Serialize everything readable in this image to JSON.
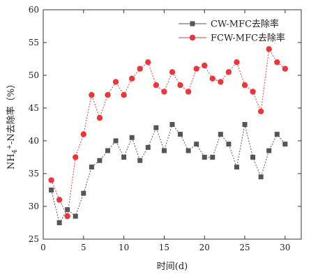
{
  "chart_data": {
    "type": "line",
    "xlabel": "时间(d)",
    "ylabel": "NH4+-N去除率（%）",
    "xlim": [
      0,
      32
    ],
    "ylim": [
      25,
      60
    ],
    "xticks": [
      0,
      5,
      10,
      15,
      20,
      25,
      30
    ],
    "yticks": [
      25,
      30,
      35,
      40,
      45,
      50,
      55,
      60
    ],
    "grid": false,
    "legend_position": "top-right",
    "series": [
      {
        "name": "CW-MFC去除率",
        "color": "#555555",
        "marker": "square",
        "x": [
          1,
          2,
          3,
          4,
          5,
          6,
          7,
          8,
          9,
          10,
          11,
          12,
          13,
          14,
          15,
          16,
          17,
          18,
          19,
          20,
          21,
          22,
          23,
          24,
          25,
          26,
          27,
          28,
          29,
          30
        ],
        "values": [
          32.5,
          27.5,
          29.5,
          28.5,
          32,
          36,
          37,
          38.5,
          40,
          37.5,
          40.5,
          37,
          39,
          42,
          38.5,
          42.5,
          41,
          38.5,
          39.5,
          37.5,
          37.5,
          41,
          39.5,
          36,
          42.5,
          37.5,
          34.5,
          38.5,
          41,
          39.5
        ]
      },
      {
        "name": "FCW-MFC去除率",
        "color": "#e8383d",
        "marker": "circle",
        "x": [
          1,
          2,
          3,
          4,
          5,
          6,
          7,
          8,
          9,
          10,
          11,
          12,
          13,
          14,
          15,
          16,
          17,
          18,
          19,
          20,
          21,
          22,
          23,
          24,
          25,
          26,
          27,
          28,
          29,
          30
        ],
        "values": [
          34,
          31,
          28.5,
          37.5,
          41,
          47,
          43.5,
          47,
          49,
          47,
          49.5,
          51,
          52,
          48.5,
          47.5,
          50.5,
          48.5,
          47.5,
          51,
          51.5,
          49.5,
          49,
          50.5,
          52,
          48.5,
          47.5,
          44.5,
          54,
          52,
          51
        ]
      }
    ]
  }
}
